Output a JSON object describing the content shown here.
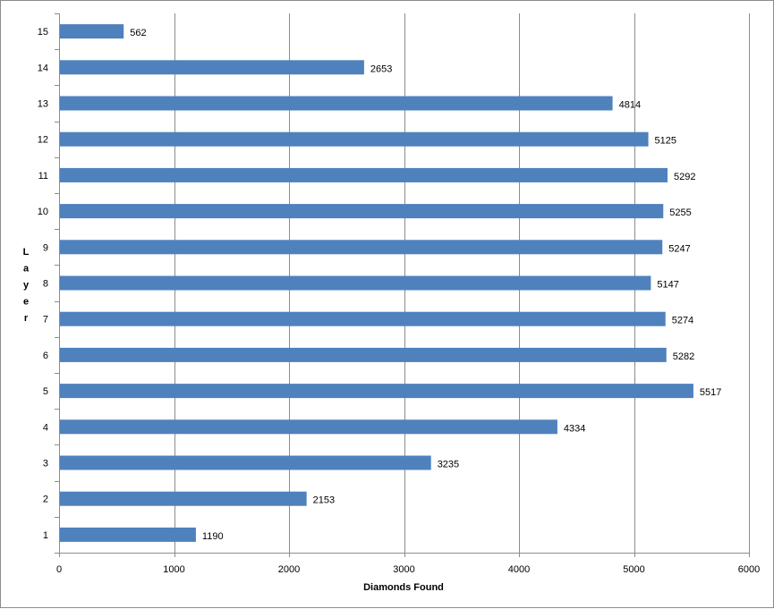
{
  "chart_data": {
    "type": "bar",
    "orientation": "horizontal",
    "title": "",
    "xlabel": "Diamonds Found",
    "ylabel": "Layer",
    "categories": [
      "1",
      "2",
      "3",
      "4",
      "5",
      "6",
      "7",
      "8",
      "9",
      "10",
      "11",
      "12",
      "13",
      "14",
      "15"
    ],
    "values": [
      1190,
      2153,
      3235,
      4334,
      5517,
      5282,
      5274,
      5147,
      5247,
      5255,
      5292,
      5125,
      4814,
      2653,
      562
    ],
    "xlim": [
      0,
      6000
    ],
    "xticks": [
      0,
      1000,
      2000,
      3000,
      4000,
      5000,
      6000
    ],
    "grid": true,
    "legend": "none",
    "bar_color": "#4f81bd",
    "data_labels": true
  }
}
